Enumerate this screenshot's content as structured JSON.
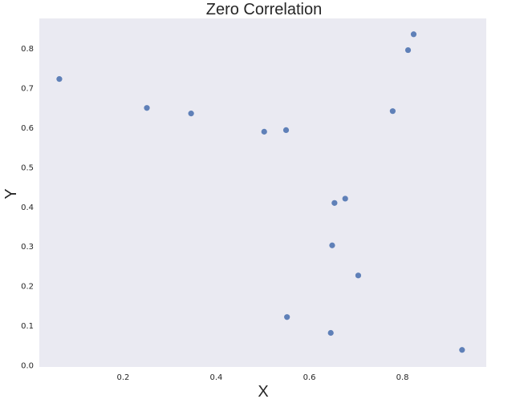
{
  "chart_data": {
    "type": "scatter",
    "title": "Zero Correlation",
    "xlabel": "X",
    "ylabel": "Y",
    "xlim": [
      0.02,
      0.98
    ],
    "ylim": [
      -0.005,
      0.875
    ],
    "x_ticks": [
      0.2,
      0.4,
      0.6,
      0.8
    ],
    "x_tick_labels": [
      "0.2",
      "0.4",
      "0.6",
      "0.8"
    ],
    "y_ticks": [
      0.0,
      0.1,
      0.2,
      0.3,
      0.4,
      0.5,
      0.6,
      0.7,
      0.8
    ],
    "y_tick_labels": [
      "0.0",
      "0.1",
      "0.2",
      "0.3",
      "0.4",
      "0.5",
      "0.6",
      "0.7",
      "0.8"
    ],
    "grid": false,
    "background_color": "#eaeaf2",
    "marker_color": "#5f80b8",
    "points": [
      {
        "x": 0.063,
        "y": 0.722
      },
      {
        "x": 0.251,
        "y": 0.649
      },
      {
        "x": 0.346,
        "y": 0.635
      },
      {
        "x": 0.503,
        "y": 0.589
      },
      {
        "x": 0.55,
        "y": 0.593
      },
      {
        "x": 0.552,
        "y": 0.121
      },
      {
        "x": 0.646,
        "y": 0.081
      },
      {
        "x": 0.649,
        "y": 0.302
      },
      {
        "x": 0.654,
        "y": 0.409
      },
      {
        "x": 0.677,
        "y": 0.42
      },
      {
        "x": 0.705,
        "y": 0.226
      },
      {
        "x": 0.779,
        "y": 0.641
      },
      {
        "x": 0.812,
        "y": 0.795
      },
      {
        "x": 0.824,
        "y": 0.835
      },
      {
        "x": 0.928,
        "y": 0.038
      }
    ]
  }
}
